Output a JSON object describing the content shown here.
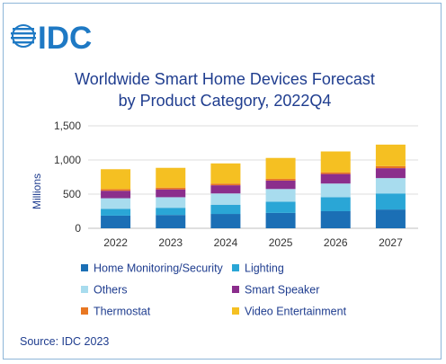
{
  "logo": {
    "text": "IDC"
  },
  "chart_data": {
    "type": "bar",
    "stacked": true,
    "title_lines": [
      "Worldwide Smart Home Devices Forecast",
      "by Product Category, 2022Q4"
    ],
    "ylabel": "Millions",
    "xlabel": "",
    "ylim": [
      0,
      1500
    ],
    "yticks": [
      0,
      500,
      1000,
      1500
    ],
    "ytick_labels": [
      "0",
      "500",
      "1,000",
      "1,500"
    ],
    "grid": true,
    "legend_position": "bottom",
    "categories": [
      "2022",
      "2023",
      "2024",
      "2025",
      "2026",
      "2027"
    ],
    "series": [
      {
        "name": "Home Monitoring/Security",
        "color": "#1b6fb5",
        "values": [
          185,
          195,
          210,
          225,
          250,
          275
        ]
      },
      {
        "name": "Lighting",
        "color": "#2aa6d6",
        "values": [
          100,
          105,
          135,
          165,
          205,
          235
        ]
      },
      {
        "name": "Others",
        "color": "#a8dcee",
        "values": [
          155,
          155,
          165,
          185,
          200,
          225
        ]
      },
      {
        "name": "Smart Speaker",
        "color": "#8b2e8c",
        "values": [
          110,
          115,
          120,
          125,
          140,
          145
        ]
      },
      {
        "name": "Thermostat",
        "color": "#e87722",
        "values": [
          25,
          25,
          25,
          25,
          25,
          30
        ]
      },
      {
        "name": "Video Entertainment",
        "color": "#f5c022",
        "values": [
          290,
          290,
          295,
          305,
          305,
          315
        ]
      }
    ]
  },
  "source": "Source: IDC 2023"
}
